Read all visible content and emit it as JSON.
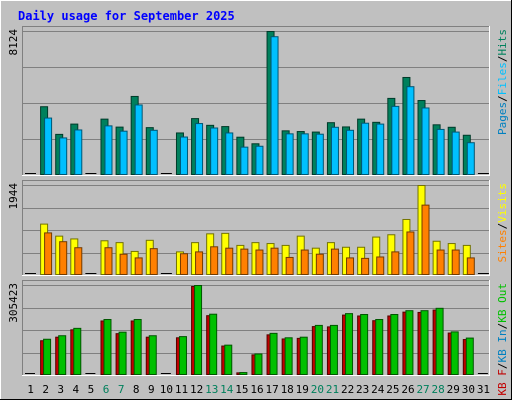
{
  "title": "Daily usage for September 2025",
  "colors": {
    "background": "#c0c0c0",
    "title": "#0000ff",
    "hits": "#00805c",
    "files": "#00c0ff",
    "sites": "#ff8000",
    "visits": "#ffff00",
    "kb_out": "#00c000",
    "kb_in": "#0080c0",
    "kb_f": "#c00000",
    "weekend_label": "#00805c",
    "weekday_label": "#000000"
  },
  "chart_data": [
    {
      "type": "bar",
      "panel": "hits-files",
      "x": [
        "1",
        "2",
        "3",
        "4",
        "5",
        "6",
        "7",
        "8",
        "9",
        "10",
        "11",
        "12",
        "13",
        "14",
        "15",
        "16",
        "17",
        "18",
        "19",
        "20",
        "21",
        "22",
        "23",
        "24",
        "25",
        "26",
        "27",
        "28",
        "29",
        "30",
        "31"
      ],
      "ymax_label": "8124",
      "ylim": [
        0,
        8124
      ],
      "legend": [
        {
          "text": "Pages",
          "color": "#0080c0"
        },
        {
          "text": "Files",
          "color": "#00c0ff"
        },
        {
          "text": "Hits",
          "color": "#00805c"
        }
      ],
      "series": [
        {
          "name": "Hits",
          "values": [
            0,
            3880,
            2320,
            2900,
            0,
            3180,
            2730,
            4460,
            2700,
            0,
            2400,
            3210,
            2830,
            2760,
            2160,
            1790,
            8124,
            2520,
            2480,
            2450,
            2980,
            2740,
            3180,
            3000,
            4350,
            5530,
            4230,
            2860,
            2720,
            2270,
            0
          ]
        },
        {
          "name": "Files",
          "values": [
            0,
            3240,
            2120,
            2570,
            0,
            2800,
            2500,
            3980,
            2550,
            0,
            2170,
            2930,
            2680,
            2400,
            1600,
            1650,
            7830,
            2350,
            2350,
            2330,
            2720,
            2550,
            2950,
            2900,
            3900,
            5010,
            3810,
            2600,
            2450,
            1850,
            0
          ]
        }
      ]
    },
    {
      "type": "bar",
      "panel": "visits-sites",
      "x": [
        "1",
        "2",
        "3",
        "4",
        "5",
        "6",
        "7",
        "8",
        "9",
        "10",
        "11",
        "12",
        "13",
        "14",
        "15",
        "16",
        "17",
        "18",
        "19",
        "20",
        "21",
        "22",
        "23",
        "24",
        "25",
        "26",
        "27",
        "28",
        "29",
        "30",
        "31"
      ],
      "ymax_label": "1944",
      "ylim": [
        0,
        1944
      ],
      "legend": [
        {
          "text": "Sites",
          "color": "#ff8000"
        },
        {
          "text": "/",
          "color": "#000000"
        },
        {
          "text": "Visits",
          "color": "#ffff00"
        }
      ],
      "series": [
        {
          "name": "Visits",
          "values": [
            0,
            1110,
            850,
            790,
            0,
            750,
            710,
            520,
            760,
            0,
            510,
            710,
            900,
            910,
            650,
            710,
            690,
            650,
            850,
            590,
            710,
            610,
            610,
            830,
            880,
            1210,
            1944,
            740,
            690,
            650,
            0
          ]
        },
        {
          "name": "Sites",
          "values": [
            0,
            920,
            730,
            600,
            0,
            600,
            460,
            380,
            580,
            0,
            470,
            510,
            620,
            590,
            570,
            550,
            590,
            390,
            550,
            460,
            570,
            380,
            370,
            400,
            510,
            940,
            1520,
            550,
            550,
            380,
            0
          ]
        }
      ]
    },
    {
      "type": "bar",
      "panel": "kbytes",
      "x": [
        "1",
        "2",
        "3",
        "4",
        "5",
        "6",
        "7",
        "8",
        "9",
        "10",
        "11",
        "12",
        "13",
        "14",
        "15",
        "16",
        "17",
        "18",
        "19",
        "20",
        "21",
        "22",
        "23",
        "24",
        "25",
        "26",
        "27",
        "28",
        "29",
        "30",
        "31"
      ],
      "ymax_label": "305423",
      "ylim": [
        0,
        305423
      ],
      "legend": [
        {
          "text": "KB F",
          "color": "#c00000"
        },
        {
          "text": "KB In",
          "color": "#0080c0"
        },
        {
          "text": "KB Out",
          "color": "#00c000"
        }
      ],
      "series": [
        {
          "name": "KB Out",
          "values": [
            0,
            123000,
            135000,
            160000,
            0,
            190000,
            147000,
            190000,
            135000,
            0,
            132000,
            305423,
            208000,
            103000,
            10000,
            73000,
            143000,
            128000,
            130000,
            170000,
            170000,
            210000,
            207000,
            190000,
            207000,
            220000,
            220000,
            228000,
            148000,
            127000,
            0
          ]
        },
        {
          "name": "KB F",
          "values": [
            0,
            118000,
            130000,
            155000,
            0,
            185000,
            142000,
            185000,
            130000,
            0,
            128000,
            302000,
            203000,
            100000,
            9000,
            70000,
            138000,
            124000,
            126000,
            166000,
            165000,
            205000,
            202000,
            186000,
            202000,
            215000,
            214000,
            222000,
            144000,
            122000,
            0
          ]
        }
      ]
    }
  ],
  "x_labels": [
    {
      "text": "1",
      "weekend": false
    },
    {
      "text": "2",
      "weekend": false
    },
    {
      "text": "3",
      "weekend": false
    },
    {
      "text": "4",
      "weekend": false
    },
    {
      "text": "5",
      "weekend": false
    },
    {
      "text": "6",
      "weekend": true
    },
    {
      "text": "7",
      "weekend": true
    },
    {
      "text": "8",
      "weekend": false
    },
    {
      "text": "9",
      "weekend": false
    },
    {
      "text": "10",
      "weekend": false
    },
    {
      "text": "11",
      "weekend": false
    },
    {
      "text": "12",
      "weekend": false
    },
    {
      "text": "13",
      "weekend": true
    },
    {
      "text": "14",
      "weekend": true
    },
    {
      "text": "15",
      "weekend": false
    },
    {
      "text": "16",
      "weekend": false
    },
    {
      "text": "17",
      "weekend": false
    },
    {
      "text": "18",
      "weekend": false
    },
    {
      "text": "19",
      "weekend": false
    },
    {
      "text": "20",
      "weekend": true
    },
    {
      "text": "21",
      "weekend": true
    },
    {
      "text": "22",
      "weekend": false
    },
    {
      "text": "23",
      "weekend": false
    },
    {
      "text": "24",
      "weekend": false
    },
    {
      "text": "25",
      "weekend": false
    },
    {
      "text": "26",
      "weekend": false
    },
    {
      "text": "27",
      "weekend": true
    },
    {
      "text": "28",
      "weekend": true
    },
    {
      "text": "29",
      "weekend": false
    },
    {
      "text": "30",
      "weekend": false
    },
    {
      "text": "31",
      "weekend": false
    }
  ]
}
